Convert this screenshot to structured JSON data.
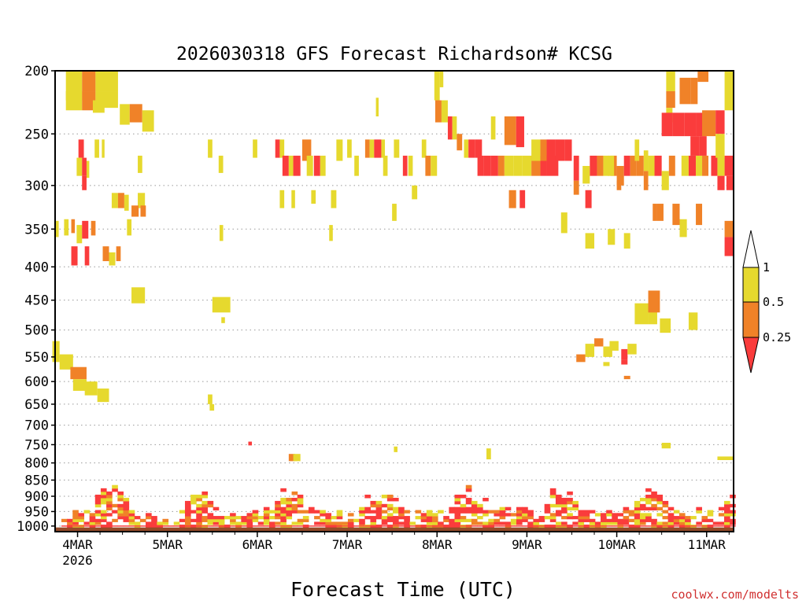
{
  "chart_data": {
    "type": "heatmap",
    "title": "2026030318 GFS Forecast Richardson# KCSG",
    "xlabel": "Forecast Time (UTC)",
    "credit": "coolwx.com/modelts",
    "y_levels": [
      200,
      250,
      300,
      350,
      400,
      450,
      500,
      550,
      600,
      650,
      700,
      750,
      800,
      850,
      900,
      950,
      1000
    ],
    "ylim": [
      200,
      1020
    ],
    "x_ticks": [
      {
        "label": "4MAR",
        "sublabel": "2026",
        "day": 4
      },
      {
        "label": "5MAR",
        "sublabel": "",
        "day": 5
      },
      {
        "label": "6MAR",
        "sublabel": "",
        "day": 6
      },
      {
        "label": "7MAR",
        "sublabel": "",
        "day": 7
      },
      {
        "label": "8MAR",
        "sublabel": "",
        "day": 8
      },
      {
        "label": "9MAR",
        "sublabel": "",
        "day": 9
      },
      {
        "label": "10MAR",
        "sublabel": "",
        "day": 10
      },
      {
        "label": "11MAR",
        "sublabel": "",
        "day": 11
      }
    ],
    "xlim_days": [
      3.75,
      11.3
    ],
    "grid": "dotted horizontal",
    "legend": {
      "placement": "right",
      "labels": [
        "1",
        "0.5",
        "0.25"
      ],
      "colors": [
        "#ffffff",
        "#e6d92e",
        "#f08228",
        "#fa3c3c"
      ]
    },
    "colors": {
      "ri_lt_025": "#fa3c3c",
      "ri_025_05": "#f08228",
      "ri_05_1": "#e6d92e",
      "ground": "#964b28"
    },
    "cells": [
      [
        3.87,
        200,
        4.05,
        222,
        2
      ],
      [
        4.05,
        200,
        4.2,
        215,
        1
      ],
      [
        4.2,
        200,
        4.45,
        215,
        2
      ],
      [
        3.87,
        215,
        4.05,
        230,
        2
      ],
      [
        4.05,
        215,
        4.2,
        230,
        1
      ],
      [
        4.2,
        215,
        4.45,
        228,
        2
      ],
      [
        4.17,
        222,
        4.3,
        232,
        2
      ],
      [
        4.47,
        225,
        4.58,
        242,
        2
      ],
      [
        4.58,
        225,
        4.72,
        240,
        1
      ],
      [
        4.72,
        230,
        4.85,
        248,
        2
      ],
      [
        4.01,
        255,
        4.07,
        272,
        0
      ],
      [
        4.19,
        255,
        4.24,
        272,
        2
      ],
      [
        4.27,
        255,
        4.3,
        272,
        2
      ],
      [
        3.99,
        272,
        4.05,
        290,
        2
      ],
      [
        4.05,
        272,
        4.1,
        290,
        0
      ],
      [
        4.1,
        275,
        4.13,
        292,
        2
      ],
      [
        4.67,
        270,
        4.72,
        287,
        2
      ],
      [
        4.05,
        290,
        4.1,
        305,
        0
      ],
      [
        4.38,
        308,
        4.45,
        325,
        2
      ],
      [
        4.45,
        308,
        4.52,
        325,
        1
      ],
      [
        4.52,
        310,
        4.57,
        328,
        2
      ],
      [
        4.67,
        308,
        4.75,
        325,
        2
      ],
      [
        4.6,
        322,
        4.68,
        335,
        1
      ],
      [
        4.7,
        322,
        4.76,
        335,
        1
      ],
      [
        3.74,
        340,
        3.79,
        360,
        2
      ],
      [
        3.85,
        338,
        3.9,
        358,
        2
      ],
      [
        3.93,
        338,
        3.97,
        355,
        1
      ],
      [
        3.99,
        345,
        4.05,
        368,
        2
      ],
      [
        4.05,
        340,
        4.12,
        362,
        0
      ],
      [
        4.15,
        340,
        4.2,
        358,
        1
      ],
      [
        4.55,
        338,
        4.6,
        358,
        2
      ],
      [
        3.93,
        372,
        4.0,
        398,
        0
      ],
      [
        4.08,
        372,
        4.13,
        398,
        0
      ],
      [
        4.28,
        372,
        4.35,
        392,
        1
      ],
      [
        4.35,
        380,
        4.42,
        398,
        2
      ],
      [
        4.43,
        372,
        4.48,
        392,
        1
      ],
      [
        4.6,
        430,
        4.75,
        455,
        2
      ],
      [
        3.72,
        520,
        3.8,
        560,
        2
      ],
      [
        3.8,
        545,
        3.95,
        575,
        2
      ],
      [
        3.92,
        570,
        4.1,
        595,
        1
      ],
      [
        3.95,
        595,
        4.1,
        620,
        2
      ],
      [
        4.08,
        600,
        4.22,
        630,
        2
      ],
      [
        4.22,
        615,
        4.35,
        645,
        2
      ],
      [
        5.45,
        255,
        5.5,
        272,
        2
      ],
      [
        5.57,
        270,
        5.62,
        287,
        2
      ],
      [
        5.95,
        255,
        6.0,
        272,
        2
      ],
      [
        6.2,
        255,
        6.25,
        272,
        0
      ],
      [
        6.25,
        255,
        6.3,
        272,
        2
      ],
      [
        6.28,
        270,
        6.35,
        290,
        0
      ],
      [
        6.35,
        270,
        6.4,
        290,
        2
      ],
      [
        6.4,
        270,
        6.48,
        290,
        0
      ],
      [
        6.5,
        255,
        6.6,
        275,
        1
      ],
      [
        6.55,
        270,
        6.62,
        290,
        2
      ],
      [
        6.63,
        270,
        6.7,
        290,
        0
      ],
      [
        6.7,
        270,
        6.76,
        290,
        2
      ],
      [
        6.88,
        255,
        6.95,
        275,
        2
      ],
      [
        7.0,
        255,
        7.05,
        272,
        2
      ],
      [
        7.08,
        270,
        7.13,
        290,
        2
      ],
      [
        7.2,
        255,
        7.25,
        272,
        1
      ],
      [
        7.25,
        255,
        7.3,
        272,
        2
      ],
      [
        7.3,
        255,
        7.38,
        272,
        0
      ],
      [
        7.38,
        255,
        7.42,
        272,
        2
      ],
      [
        7.4,
        270,
        7.45,
        290,
        2
      ],
      [
        7.52,
        255,
        7.58,
        272,
        2
      ],
      [
        7.62,
        270,
        7.67,
        290,
        0
      ],
      [
        7.68,
        270,
        7.73,
        290,
        2
      ],
      [
        7.83,
        255,
        7.88,
        272,
        2
      ],
      [
        7.87,
        270,
        7.93,
        290,
        1
      ],
      [
        7.93,
        270,
        8.0,
        290,
        2
      ],
      [
        7.72,
        300,
        7.78,
        315,
        2
      ],
      [
        6.25,
        305,
        6.3,
        325,
        2
      ],
      [
        6.38,
        305,
        6.42,
        325,
        2
      ],
      [
        6.6,
        305,
        6.65,
        320,
        2
      ],
      [
        6.82,
        305,
        6.88,
        325,
        2
      ],
      [
        7.32,
        220,
        7.35,
        235,
        2
      ],
      [
        5.58,
        345,
        5.62,
        365,
        2
      ],
      [
        6.8,
        345,
        6.84,
        365,
        2
      ],
      [
        7.5,
        320,
        7.55,
        340,
        2
      ],
      [
        5.5,
        445,
        5.7,
        470,
        2
      ],
      [
        5.6,
        478,
        5.64,
        488,
        2
      ],
      [
        5.45,
        628,
        5.5,
        650,
        2
      ],
      [
        5.47,
        650,
        5.52,
        665,
        2
      ],
      [
        7.97,
        200,
        8.03,
        222,
        2
      ],
      [
        8.03,
        200,
        8.07,
        212,
        2
      ],
      [
        7.98,
        222,
        8.05,
        240,
        1
      ],
      [
        8.05,
        222,
        8.12,
        240,
        2
      ],
      [
        8.12,
        235,
        8.17,
        255,
        0
      ],
      [
        8.17,
        235,
        8.22,
        255,
        2
      ],
      [
        8.22,
        250,
        8.28,
        265,
        1
      ],
      [
        8.3,
        255,
        8.35,
        272,
        2
      ],
      [
        8.35,
        255,
        8.42,
        272,
        0
      ],
      [
        8.42,
        255,
        8.5,
        272,
        0
      ],
      [
        8.45,
        270,
        8.52,
        290,
        0
      ],
      [
        8.52,
        270,
        8.6,
        290,
        0
      ],
      [
        8.6,
        270,
        8.68,
        290,
        0
      ],
      [
        8.68,
        270,
        8.75,
        290,
        1
      ],
      [
        8.75,
        270,
        8.85,
        290,
        2
      ],
      [
        8.85,
        270,
        8.95,
        290,
        2
      ],
      [
        8.95,
        270,
        9.05,
        290,
        2
      ],
      [
        9.05,
        270,
        9.15,
        290,
        1
      ],
      [
        9.15,
        270,
        9.22,
        290,
        0
      ],
      [
        9.22,
        270,
        9.35,
        290,
        0
      ],
      [
        8.8,
        305,
        8.88,
        325,
        1
      ],
      [
        8.92,
        305,
        8.98,
        325,
        0
      ],
      [
        8.6,
        235,
        8.65,
        255,
        2
      ],
      [
        8.75,
        235,
        8.88,
        260,
        1
      ],
      [
        8.88,
        235,
        8.97,
        262,
        0
      ],
      [
        9.05,
        255,
        9.15,
        275,
        2
      ],
      [
        9.15,
        255,
        9.22,
        275,
        1
      ],
      [
        9.22,
        255,
        9.32,
        275,
        0
      ],
      [
        9.32,
        255,
        9.42,
        275,
        0
      ],
      [
        9.42,
        255,
        9.5,
        275,
        0
      ],
      [
        9.52,
        270,
        9.58,
        295,
        0
      ],
      [
        9.52,
        295,
        9.58,
        310,
        1
      ],
      [
        9.65,
        305,
        9.72,
        325,
        0
      ],
      [
        9.7,
        270,
        9.78,
        290,
        0
      ],
      [
        9.78,
        270,
        9.85,
        290,
        1
      ],
      [
        9.85,
        270,
        9.92,
        290,
        2
      ],
      [
        9.93,
        270,
        10.0,
        290,
        1
      ],
      [
        10.0,
        280,
        10.08,
        300,
        1
      ],
      [
        10.08,
        270,
        10.15,
        290,
        0
      ],
      [
        10.15,
        270,
        10.22,
        290,
        1
      ],
      [
        10.22,
        270,
        10.3,
        290,
        1
      ],
      [
        10.3,
        285,
        10.35,
        305,
        1
      ],
      [
        10.35,
        270,
        10.42,
        290,
        2
      ],
      [
        10.42,
        270,
        10.5,
        290,
        0
      ],
      [
        10.5,
        285,
        10.58,
        305,
        2
      ],
      [
        10.58,
        270,
        10.65,
        290,
        1
      ],
      [
        10.72,
        270,
        10.8,
        290,
        2
      ],
      [
        10.8,
        270,
        10.88,
        290,
        0
      ],
      [
        10.88,
        270,
        10.95,
        290,
        2
      ],
      [
        10.95,
        270,
        11.02,
        290,
        1
      ],
      [
        11.05,
        270,
        11.12,
        290,
        0
      ],
      [
        11.12,
        270,
        11.2,
        290,
        2
      ],
      [
        11.2,
        270,
        11.3,
        290,
        0
      ],
      [
        11.12,
        290,
        11.2,
        305,
        0
      ],
      [
        11.22,
        290,
        11.3,
        305,
        0
      ],
      [
        10.55,
        200,
        10.65,
        215,
        2
      ],
      [
        10.55,
        215,
        10.65,
        228,
        1
      ],
      [
        10.55,
        228,
        10.62,
        240,
        2
      ],
      [
        10.5,
        232,
        10.62,
        252,
        0
      ],
      [
        10.62,
        232,
        10.75,
        252,
        0
      ],
      [
        10.75,
        232,
        10.88,
        252,
        0
      ],
      [
        10.88,
        232,
        10.98,
        252,
        0
      ],
      [
        10.7,
        205,
        10.82,
        225,
        1
      ],
      [
        10.82,
        205,
        10.9,
        225,
        1
      ],
      [
        10.82,
        252,
        10.92,
        270,
        0
      ],
      [
        10.92,
        252,
        11.0,
        270,
        0
      ],
      [
        10.95,
        230,
        11.1,
        252,
        1
      ],
      [
        11.1,
        230,
        11.2,
        250,
        0
      ],
      [
        11.2,
        200,
        11.3,
        230,
        2
      ],
      [
        11.1,
        250,
        11.2,
        272,
        2
      ],
      [
        10.9,
        200,
        11.02,
        208,
        1
      ],
      [
        9.9,
        270,
        9.97,
        290,
        2
      ],
      [
        10.0,
        295,
        10.05,
        305,
        1
      ],
      [
        10.2,
        255,
        10.25,
        275,
        2
      ],
      [
        10.3,
        265,
        10.35,
        285,
        2
      ],
      [
        9.62,
        280,
        9.7,
        298,
        2
      ],
      [
        9.9,
        350,
        9.98,
        370,
        2
      ],
      [
        9.38,
        330,
        9.45,
        355,
        2
      ],
      [
        9.65,
        355,
        9.75,
        375,
        2
      ],
      [
        10.08,
        355,
        10.15,
        375,
        2
      ],
      [
        10.4,
        320,
        10.45,
        340,
        1
      ],
      [
        10.45,
        320,
        10.52,
        340,
        1
      ],
      [
        10.62,
        320,
        10.7,
        345,
        1
      ],
      [
        10.7,
        338,
        10.78,
        360,
        2
      ],
      [
        10.88,
        320,
        10.95,
        345,
        1
      ],
      [
        11.2,
        340,
        11.3,
        360,
        1
      ],
      [
        11.2,
        360,
        11.3,
        385,
        0
      ],
      [
        10.2,
        455,
        10.35,
        490,
        2
      ],
      [
        10.35,
        455,
        10.45,
        490,
        2
      ],
      [
        10.35,
        435,
        10.48,
        470,
        1
      ],
      [
        10.48,
        480,
        10.6,
        505,
        2
      ],
      [
        10.8,
        470,
        10.9,
        500,
        2
      ],
      [
        9.65,
        525,
        9.75,
        550,
        2
      ],
      [
        9.75,
        515,
        9.85,
        530,
        1
      ],
      [
        9.85,
        530,
        9.95,
        550,
        2
      ],
      [
        9.92,
        520,
        10.02,
        538,
        2
      ],
      [
        10.05,
        535,
        10.12,
        555,
        0
      ],
      [
        10.05,
        555,
        10.12,
        565,
        0
      ],
      [
        10.12,
        525,
        10.22,
        545,
        2
      ],
      [
        9.55,
        545,
        9.65,
        560,
        1
      ],
      [
        9.85,
        560,
        9.92,
        568,
        2
      ],
      [
        10.08,
        588,
        10.15,
        595,
        1
      ],
      [
        10.5,
        745,
        10.6,
        760,
        2
      ],
      [
        11.12,
        782,
        11.3,
        792,
        2
      ],
      [
        5.9,
        742,
        5.94,
        752,
        0
      ],
      [
        6.35,
        775,
        6.42,
        795,
        1
      ],
      [
        6.4,
        775,
        6.48,
        795,
        2
      ],
      [
        7.52,
        755,
        7.56,
        770,
        2
      ],
      [
        8.55,
        760,
        8.6,
        790,
        2
      ]
    ],
    "cell_value_legend": [
      "<0.25",
      "0.25-0.5",
      "0.5-1"
    ]
  }
}
